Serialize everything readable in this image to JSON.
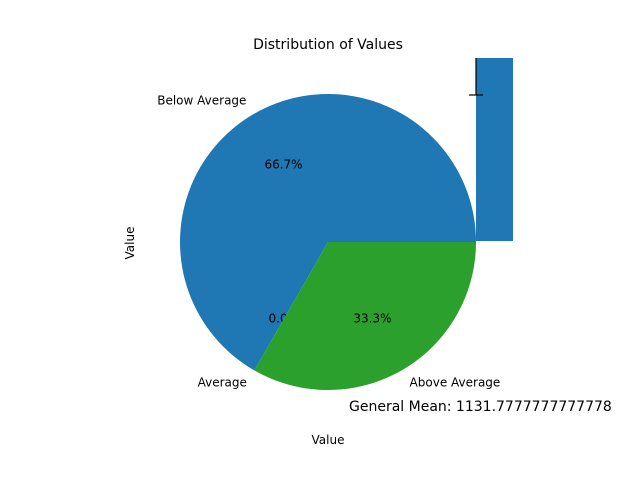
{
  "chart_data": {
    "type": "pie",
    "title": "Distribution of Values",
    "xlabel": "Value",
    "ylabel": "Value",
    "slices": [
      {
        "label": "Below Average",
        "value": 66.7,
        "pct_label": "66.7%",
        "color": "#1f77b4"
      },
      {
        "label": "Average",
        "value": 0.0,
        "pct_label": "0.0%",
        "color": "#ff7f0e"
      },
      {
        "label": "Above Average",
        "value": 33.3,
        "pct_label": "33.3%",
        "color": "#2ca02c"
      }
    ],
    "bar": {
      "color": "#1f77b4",
      "has_error_bar": true
    },
    "annotation": "General Mean: 1131.7777777777778"
  }
}
